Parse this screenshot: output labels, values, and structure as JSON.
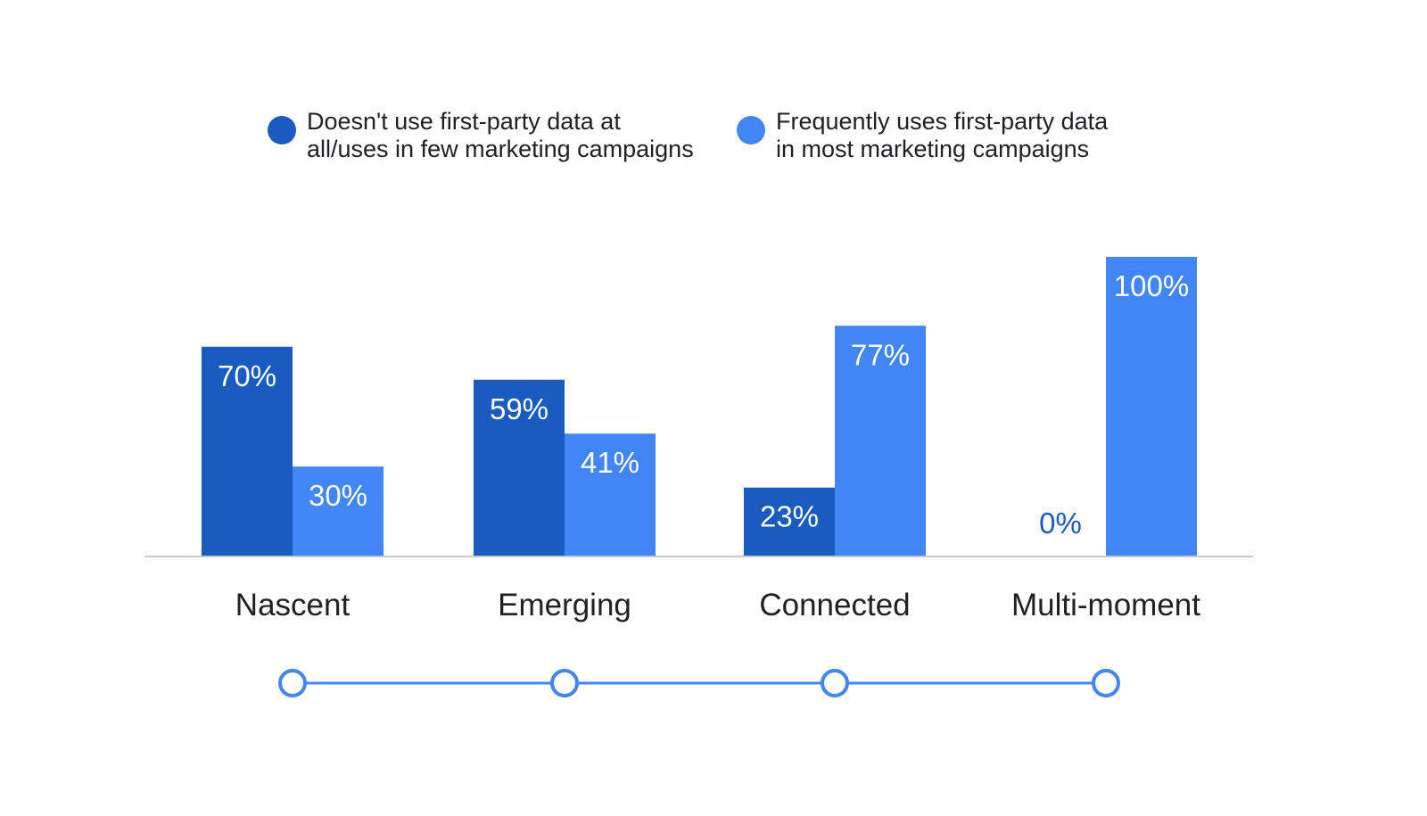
{
  "chart_data": {
    "type": "bar",
    "categories": [
      "Nascent",
      "Emerging",
      "Connected",
      "Multi-moment"
    ],
    "series": [
      {
        "legend_lines": [
          "Doesn't use first-party data at",
          "all/uses in few marketing campaigns"
        ],
        "color": "#1a5bbf",
        "values": [
          70,
          59,
          23,
          0
        ],
        "value_labels": [
          "70%",
          "59%",
          "23%",
          "0%"
        ]
      },
      {
        "legend_lines": [
          "Frequently uses first-party data",
          "in most marketing campaigns"
        ],
        "color": "#4285f4",
        "values": [
          30,
          41,
          77,
          100
        ],
        "value_labels": [
          "30%",
          "41%",
          "77%",
          "100%"
        ]
      }
    ],
    "ylim": [
      0,
      100
    ],
    "grid": false,
    "legend_position": "top",
    "timeline_color": "#4285f4",
    "axis_color": "#c8c8c8",
    "label_text_color": "#ffffff"
  }
}
